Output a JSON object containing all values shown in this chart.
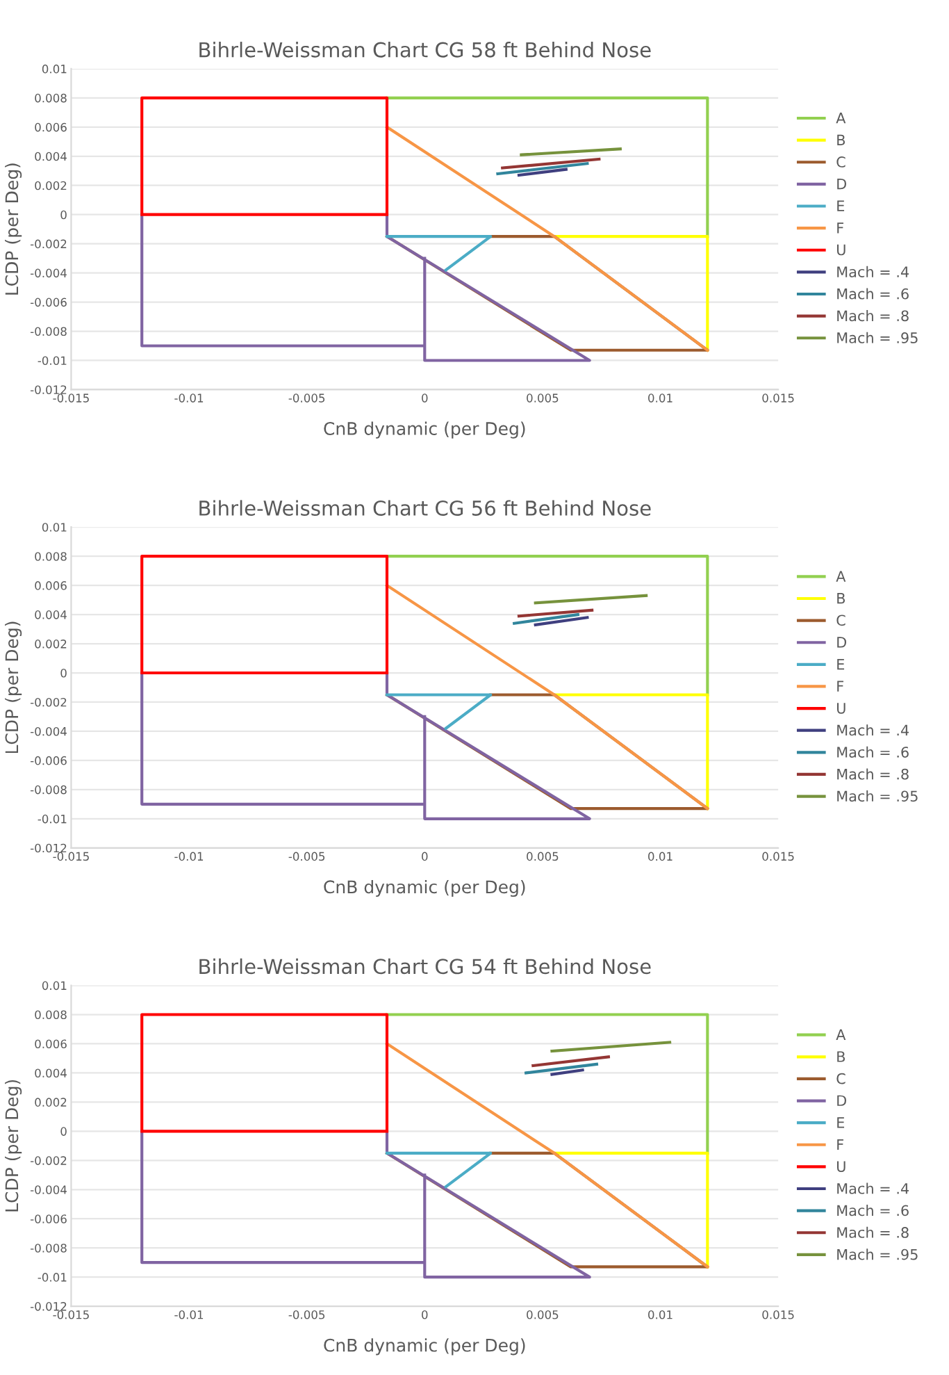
{
  "chart_data": [
    {
      "type": "line",
      "title": "Bihrle-Weissman Chart CG 58 ft Behind Nose",
      "xlabel": "CnB dynamic (per Deg)",
      "ylabel": "LCDP (per Deg)",
      "xlim": [
        -0.015,
        0.015
      ],
      "xticks": [
        -0.015,
        -0.01,
        -0.005,
        0,
        0.005,
        0.01,
        0.015
      ],
      "ylim": [
        -0.012,
        0.01
      ],
      "yticks": [
        -0.012,
        -0.01,
        -0.008,
        -0.006,
        -0.004,
        -0.002,
        0,
        0.002,
        0.004,
        0.006,
        0.008,
        0.01
      ],
      "grid": "y",
      "legend": "right",
      "series": [
        {
          "name": "A",
          "color": "#92d050",
          "x": [
            -0.0016,
            0.012,
            0.012
          ],
          "values": [
            0.008,
            0.008,
            -0.0015
          ]
        },
        {
          "name": "B",
          "color": "#ffff00",
          "x": [
            0.0055,
            0.012,
            0.012
          ],
          "values": [
            -0.0015,
            -0.0015,
            -0.0093
          ]
        },
        {
          "name": "C",
          "color": "#9c5b2e",
          "x": [
            0.0028,
            0.0055,
            0.012,
            0.0062,
            -0.0016
          ],
          "values": [
            -0.0015,
            -0.0015,
            -0.0093,
            -0.0093,
            -0.0015
          ]
        },
        {
          "name": "D",
          "color": "#8064a2",
          "x": [
            -0.012,
            -0.012,
            0,
            null,
            0,
            0,
            0.007,
            -0.0016,
            -0.0016
          ],
          "values": [
            0,
            -0.009,
            -0.009,
            null,
            -0.003,
            -0.01,
            -0.01,
            -0.0015,
            0
          ]
        },
        {
          "name": "E",
          "color": "#4bacc6",
          "x": [
            -0.0016,
            0.0028,
            0.0009
          ],
          "values": [
            -0.0015,
            -0.0015,
            -0.0038
          ]
        },
        {
          "name": "F",
          "color": "#f79646",
          "x": [
            -0.0016,
            0.0055,
            0.012
          ],
          "values": [
            0.006,
            -0.0015,
            -0.0093
          ]
        },
        {
          "name": "U",
          "color": "#ff0000",
          "x": [
            -0.012,
            -0.012,
            -0.0016,
            -0.0016,
            null,
            -0.0016,
            -0.012
          ],
          "values": [
            0,
            0.008,
            0.008,
            0,
            null,
            0,
            0
          ]
        },
        {
          "name": "Mach = .4",
          "color": "#3f3f7f",
          "x": [
            0.004,
            0.006
          ],
          "values": [
            0.0027,
            0.0031
          ]
        },
        {
          "name": "Mach = .6",
          "color": "#31859c",
          "x": [
            0.0031,
            0.0069
          ],
          "values": [
            0.0028,
            0.0035
          ]
        },
        {
          "name": "Mach = .8",
          "color": "#943634",
          "x": [
            0.0033,
            0.0074
          ],
          "values": [
            0.0032,
            0.0038
          ]
        },
        {
          "name": "Mach = .95",
          "color": "#76923c",
          "x": [
            0.0041,
            0.0083
          ],
          "values": [
            0.0041,
            0.0045
          ]
        }
      ]
    },
    {
      "type": "line",
      "title": "Bihrle-Weissman Chart CG 56 ft Behind Nose",
      "xlabel": "CnB dynamic (per Deg)",
      "ylabel": "LCDP (per Deg)",
      "xlim": [
        -0.015,
        0.015
      ],
      "xticks": [
        -0.015,
        -0.01,
        -0.005,
        0,
        0.005,
        0.01,
        0.015
      ],
      "ylim": [
        -0.012,
        0.01
      ],
      "yticks": [
        -0.012,
        -0.01,
        -0.008,
        -0.006,
        -0.004,
        -0.002,
        0,
        0.002,
        0.004,
        0.006,
        0.008,
        0.01
      ],
      "grid": "y",
      "legend": "right",
      "series": [
        {
          "name": "A",
          "color": "#92d050",
          "x": [
            -0.0016,
            0.012,
            0.012
          ],
          "values": [
            0.008,
            0.008,
            -0.0015
          ]
        },
        {
          "name": "B",
          "color": "#ffff00",
          "x": [
            0.0055,
            0.012,
            0.012
          ],
          "values": [
            -0.0015,
            -0.0015,
            -0.0093
          ]
        },
        {
          "name": "C",
          "color": "#9c5b2e",
          "x": [
            0.0028,
            0.0055,
            0.012,
            0.0062,
            -0.0016
          ],
          "values": [
            -0.0015,
            -0.0015,
            -0.0093,
            -0.0093,
            -0.0015
          ]
        },
        {
          "name": "D",
          "color": "#8064a2",
          "x": [
            -0.012,
            -0.012,
            0,
            null,
            0,
            0,
            0.007,
            -0.0016,
            -0.0016
          ],
          "values": [
            0,
            -0.009,
            -0.009,
            null,
            -0.003,
            -0.01,
            -0.01,
            -0.0015,
            0
          ]
        },
        {
          "name": "E",
          "color": "#4bacc6",
          "x": [
            -0.0016,
            0.0028,
            0.0009
          ],
          "values": [
            -0.0015,
            -0.0015,
            -0.0038
          ]
        },
        {
          "name": "F",
          "color": "#f79646",
          "x": [
            -0.0016,
            0.0055,
            0.012
          ],
          "values": [
            0.006,
            -0.0015,
            -0.0093
          ]
        },
        {
          "name": "U",
          "color": "#ff0000",
          "x": [
            -0.012,
            -0.012,
            -0.0016,
            -0.0016,
            null,
            -0.0016,
            -0.012
          ],
          "values": [
            0,
            0.008,
            0.008,
            0,
            null,
            0,
            0
          ]
        },
        {
          "name": "Mach = .4",
          "color": "#3f3f7f",
          "x": [
            0.0047,
            0.0069
          ],
          "values": [
            0.0033,
            0.0038
          ]
        },
        {
          "name": "Mach = .6",
          "color": "#31859c",
          "x": [
            0.0038,
            0.0065
          ],
          "values": [
            0.0034,
            0.004
          ]
        },
        {
          "name": "Mach = .8",
          "color": "#943634",
          "x": [
            0.004,
            0.0071
          ],
          "values": [
            0.0039,
            0.0043
          ]
        },
        {
          "name": "Mach = .95",
          "color": "#76923c",
          "x": [
            0.0047,
            0.0094
          ],
          "values": [
            0.0048,
            0.0053
          ]
        }
      ]
    },
    {
      "type": "line",
      "title": "Bihrle-Weissman Chart CG 54 ft Behind Nose",
      "xlabel": "CnB dynamic (per Deg)",
      "ylabel": "LCDP (per Deg)",
      "xlim": [
        -0.015,
        0.015
      ],
      "xticks": [
        -0.015,
        -0.01,
        -0.005,
        0,
        0.005,
        0.01,
        0.015
      ],
      "ylim": [
        -0.012,
        0.01
      ],
      "yticks": [
        -0.012,
        -0.01,
        -0.008,
        -0.006,
        -0.004,
        -0.002,
        0,
        0.002,
        0.004,
        0.006,
        0.008,
        0.01
      ],
      "grid": "y",
      "legend": "right",
      "series": [
        {
          "name": "A",
          "color": "#92d050",
          "x": [
            -0.0016,
            0.012,
            0.012
          ],
          "values": [
            0.008,
            0.008,
            -0.0015
          ]
        },
        {
          "name": "B",
          "color": "#ffff00",
          "x": [
            0.0055,
            0.012,
            0.012
          ],
          "values": [
            -0.0015,
            -0.0015,
            -0.0093
          ]
        },
        {
          "name": "C",
          "color": "#9c5b2e",
          "x": [
            0.0028,
            0.0055,
            0.012,
            0.0062,
            -0.0016
          ],
          "values": [
            -0.0015,
            -0.0015,
            -0.0093,
            -0.0093,
            -0.0015
          ]
        },
        {
          "name": "D",
          "color": "#8064a2",
          "x": [
            -0.012,
            -0.012,
            0,
            null,
            0,
            0,
            0.007,
            -0.0016,
            -0.0016
          ],
          "values": [
            0,
            -0.009,
            -0.009,
            null,
            -0.003,
            -0.01,
            -0.01,
            -0.0015,
            0
          ]
        },
        {
          "name": "E",
          "color": "#4bacc6",
          "x": [
            -0.0016,
            0.0028,
            0.0009
          ],
          "values": [
            -0.0015,
            -0.0015,
            -0.0038
          ]
        },
        {
          "name": "F",
          "color": "#f79646",
          "x": [
            -0.0016,
            0.0055,
            0.012
          ],
          "values": [
            0.006,
            -0.0015,
            -0.0093
          ]
        },
        {
          "name": "U",
          "color": "#ff0000",
          "x": [
            -0.012,
            -0.012,
            -0.0016,
            -0.0016,
            null,
            -0.0016,
            -0.012
          ],
          "values": [
            0,
            0.008,
            0.008,
            0,
            null,
            0,
            0
          ]
        },
        {
          "name": "Mach = .4",
          "color": "#3f3f7f",
          "x": [
            0.0054,
            0.0067
          ],
          "values": [
            0.0039,
            0.0042
          ]
        },
        {
          "name": "Mach = .6",
          "color": "#31859c",
          "x": [
            0.0043,
            0.0073
          ],
          "values": [
            0.004,
            0.0046
          ]
        },
        {
          "name": "Mach = .8",
          "color": "#943634",
          "x": [
            0.0046,
            0.0078
          ],
          "values": [
            0.0045,
            0.0051
          ]
        },
        {
          "name": "Mach = .95",
          "color": "#76923c",
          "x": [
            0.0054,
            0.0104
          ],
          "values": [
            0.0055,
            0.0061
          ]
        }
      ]
    }
  ]
}
